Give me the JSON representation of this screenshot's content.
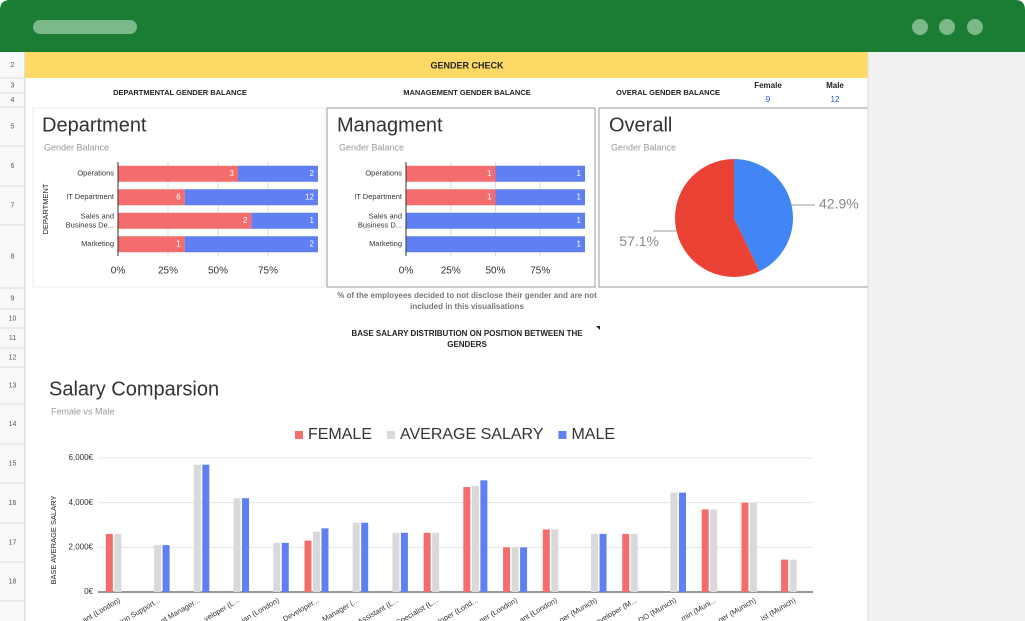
{
  "row_numbers": [
    2,
    3,
    4,
    5,
    6,
    7,
    8,
    9,
    10,
    11,
    12,
    13,
    14,
    15,
    16,
    17,
    18
  ],
  "header": {
    "title": "GENDER CHECK",
    "sections": [
      "DEPARTMENTAL GENDER BALANCE",
      "MANAGEMENT GENDER BALANCE",
      "OVERAL GENDER BALANCE"
    ],
    "counts": [
      {
        "label": "Female",
        "value": 9
      },
      {
        "label": "Male",
        "value": 12
      }
    ]
  },
  "note": "% of the employees decided to not disclose their gender and are not included in this visualisations",
  "salary_heading": "BASE SALARY DISTRIBUTION ON POSITION BETWEEN THE GENDERS",
  "chart_data": [
    {
      "type": "bar",
      "orientation": "horizontal",
      "stacking": "percent",
      "title": "Department",
      "subtitle": "Gender Balance",
      "y_label": "DEPARTMENT",
      "categories": [
        "Operations",
        "IT Department",
        "Sales and Business De...",
        "Marketing"
      ],
      "series": [
        {
          "color": "#f46d6d",
          "values": [
            3,
            6,
            2,
            1
          ]
        },
        {
          "color": "#5f7ff2",
          "values": [
            2,
            12,
            1,
            2
          ]
        }
      ],
      "xlim": [
        0,
        100
      ],
      "xticks": [
        {
          "value": 0,
          "label": "0%"
        },
        {
          "value": 25,
          "label": "25%"
        },
        {
          "value": 50,
          "label": "50%"
        },
        {
          "value": 75,
          "label": "75%"
        }
      ],
      "grid": true
    },
    {
      "type": "bar",
      "orientation": "horizontal",
      "stacking": "percent",
      "title": "Managment",
      "subtitle": "Gender Balance",
      "categories": [
        "Operations",
        "IT Department",
        "Sales and Business D...",
        "Marketing"
      ],
      "series": [
        {
          "color": "#f46d6d",
          "values": [
            1,
            1,
            0,
            0
          ]
        },
        {
          "color": "#5f7ff2",
          "values": [
            1,
            1,
            1,
            1
          ]
        }
      ],
      "xlim": [
        0,
        100
      ],
      "xticks": [
        {
          "value": 0,
          "label": "0%"
        },
        {
          "value": 25,
          "label": "25%"
        },
        {
          "value": 50,
          "label": "50%"
        },
        {
          "value": 75,
          "label": "75%"
        }
      ],
      "grid": true
    },
    {
      "type": "pie",
      "title": "Overall",
      "subtitle": "Gender Balance",
      "values": [
        42.9,
        57.1
      ],
      "value_labels": [
        "42.9%",
        "57.1%"
      ],
      "colors": [
        "#4285f4",
        "#ea4335"
      ]
    },
    {
      "type": "bar",
      "orientation": "vertical",
      "title": "Salary Comparsion",
      "subtitle": "Female vs Male",
      "y_label": "BASE AVERAGE SALARY",
      "legend": "top",
      "categories": [
        "ant (London)",
        "ion Support...",
        "nt Manager...",
        "veloper (L...",
        "ian (London)",
        "Developer...",
        "Manager (...",
        "Assistant (L...",
        "Specialist (L...",
        "veloper (Lond...",
        "ger (London)",
        "ant (London)",
        "ger (Munich)",
        "Developer (M...",
        "DO (Munich)",
        "min (Muni...",
        "ger (Munich)",
        "ist (Munich)"
      ],
      "series": [
        {
          "name": "FEMALE",
          "color": "#f46d6d",
          "values": [
            2600,
            null,
            null,
            null,
            null,
            2300,
            null,
            null,
            2650,
            4700,
            2000,
            2800,
            null,
            2600,
            null,
            3700,
            4000,
            1450
          ]
        },
        {
          "name": "AVERAGE SALARY",
          "color": "#d9d9d9",
          "values": [
            2600,
            2100,
            5700,
            4200,
            2200,
            2700,
            3100,
            2650,
            2650,
            4750,
            2000,
            2800,
            2600,
            2600,
            4450,
            3700,
            4000,
            1450
          ]
        },
        {
          "name": "MALE",
          "color": "#5f7ff2",
          "values": [
            null,
            2100,
            5700,
            4200,
            2200,
            2850,
            3100,
            2650,
            null,
            5000,
            2000,
            null,
            2600,
            null,
            4450,
            null,
            null,
            null
          ]
        }
      ],
      "ylim": [
        0,
        6000
      ],
      "yticks": [
        {
          "value": 0,
          "label": "0€"
        },
        {
          "value": 2000,
          "label": "2,000€"
        },
        {
          "value": 4000,
          "label": "4,000€"
        },
        {
          "value": 6000,
          "label": "6,000€"
        }
      ],
      "grid": true
    }
  ]
}
